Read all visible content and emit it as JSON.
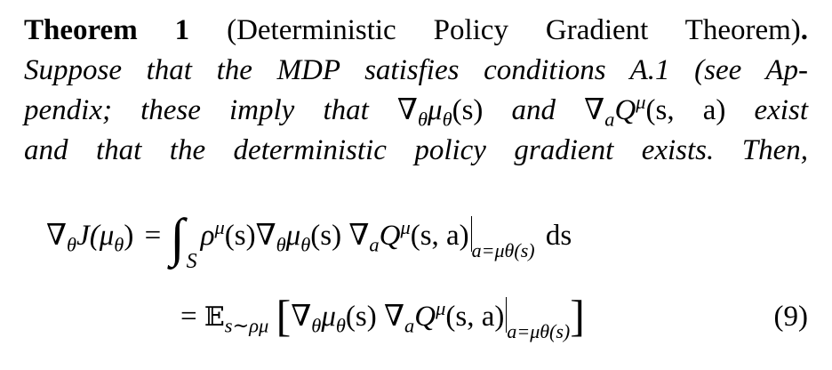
{
  "theorem": {
    "label": "Theorem 1",
    "title": "(Deterministic Policy Gradient Theorem)",
    "period": ".",
    "line2": "Suppose that the MDP satisfies conditions A.1 (see Ap-",
    "line3_a": "pendix; these imply that",
    "line3_b": "and",
    "line3_c": "exist",
    "line4": "and that the deterministic policy gradient exists. Then,"
  },
  "math": {
    "grad_mu": "∇",
    "theta": "θ",
    "mu": "μ",
    "s_paren": "(s)",
    "a": "a",
    "Q": "Q",
    "sa_paren": "(s, a)",
    "J_lhs": "J(μ",
    "close_paren": ")",
    "equals": "=",
    "integral": "∫",
    "S": "S",
    "rho": "ρ",
    "eval_at": "a=μθ(s)",
    "ds": "ds",
    "E": "𝔼",
    "E_sub": "s∼ρμ",
    "lbracket": "[",
    "rbracket": "]",
    "eq_number": "(9)"
  }
}
